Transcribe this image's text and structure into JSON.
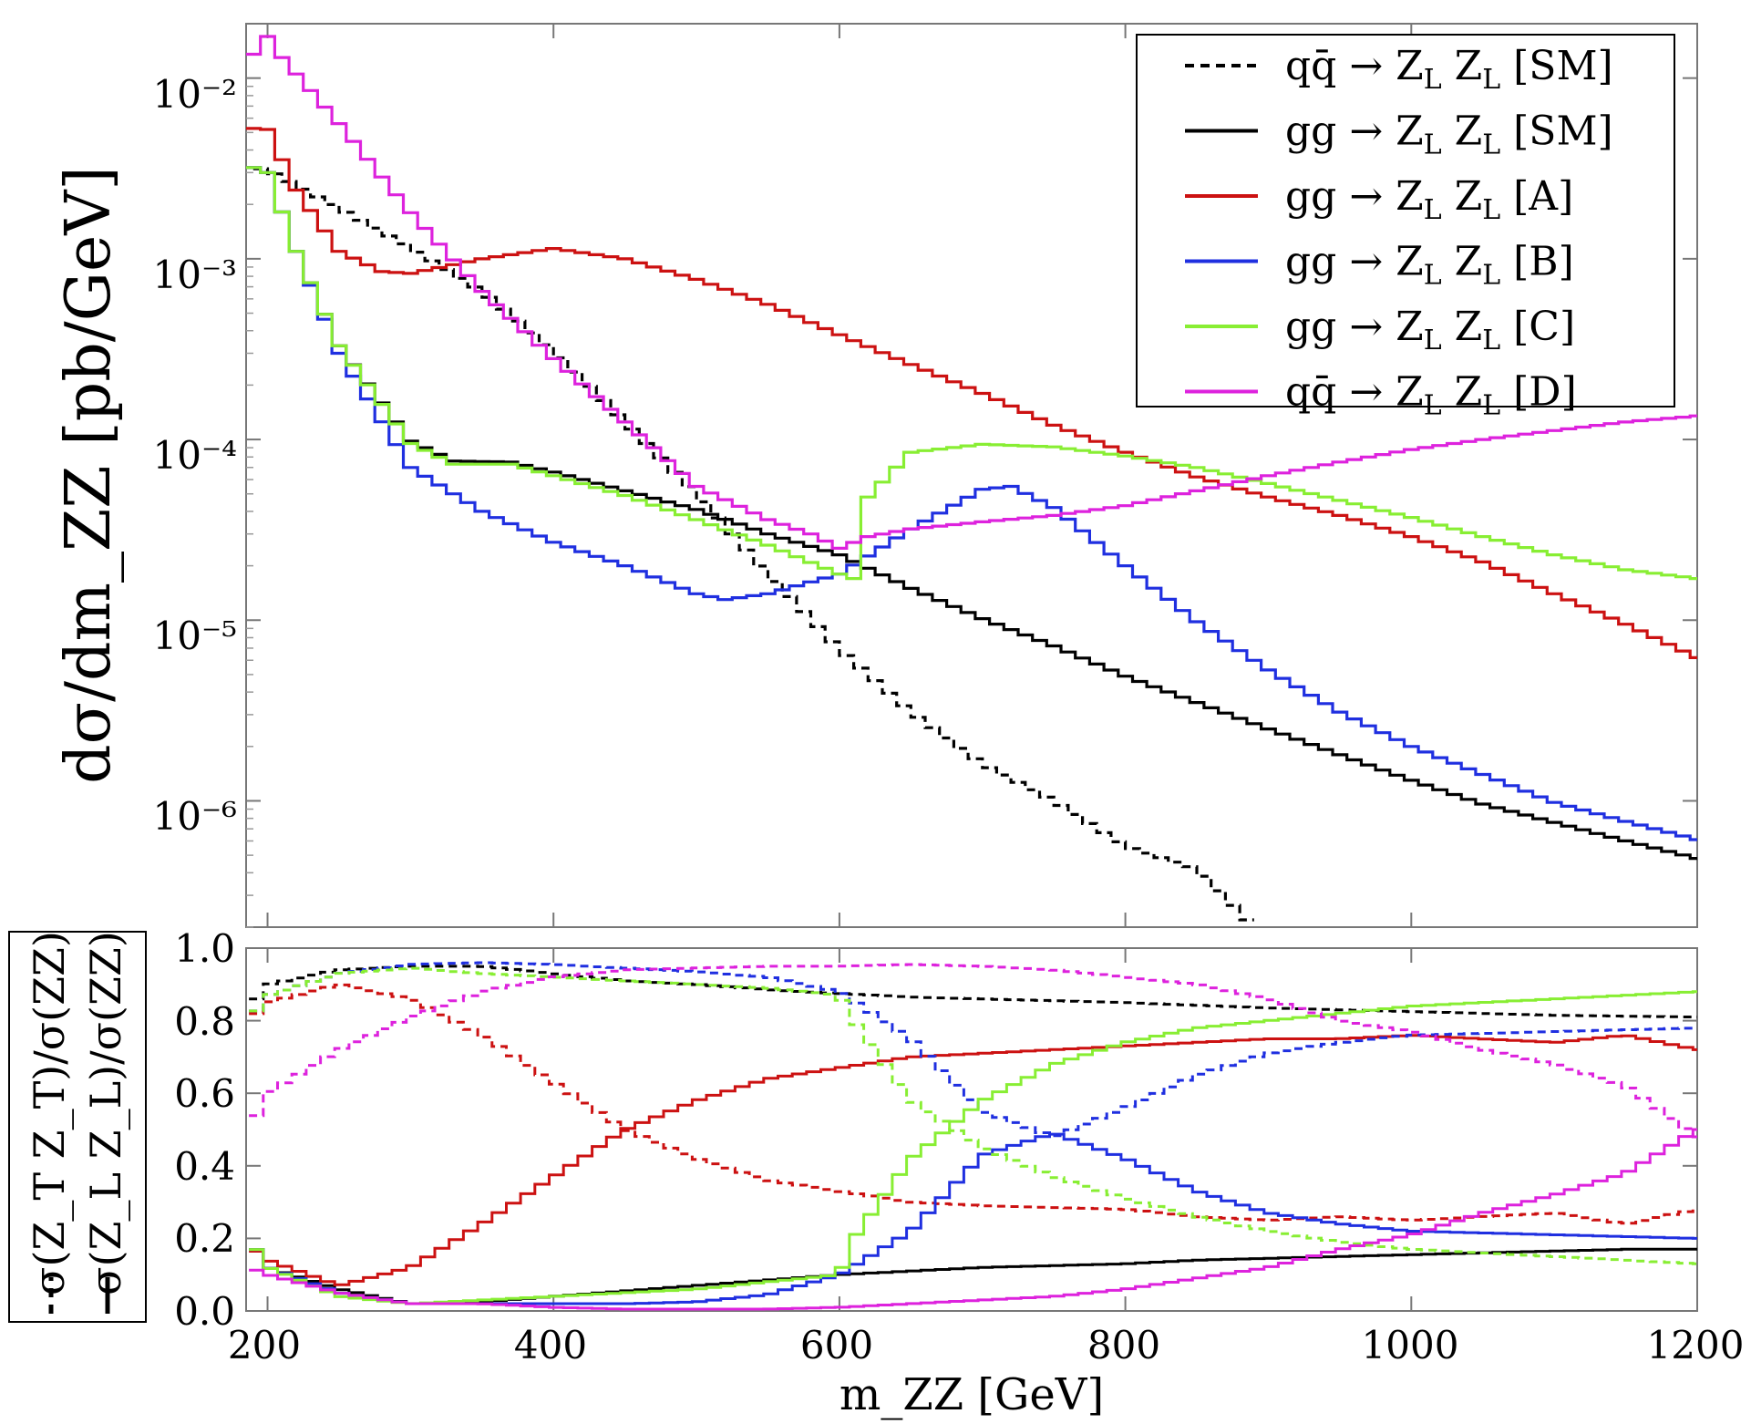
{
  "colors": {
    "qqSM": "#000000",
    "ggSM": "#000000",
    "A": "#cc1111",
    "B": "#1f2fe0",
    "C": "#88ee33",
    "D": "#dd22dd"
  },
  "chart_data": [
    {
      "type": "line",
      "step": true,
      "yscale": "log",
      "ylabel": "dσ/dm_ZZ [pb/GeV]",
      "xlim": [
        185,
        1200
      ],
      "ylim": [
        2e-07,
        0.02
      ],
      "ytick_labels": [
        "10⁻²",
        "10⁻³",
        "10⁻⁴",
        "10⁻⁵",
        "10⁻⁶"
      ],
      "ytick_values": [
        0.01,
        0.001,
        0.0001,
        1e-05,
        1e-06
      ],
      "legend": [
        {
          "label": "qq̄ → Z_L Z_L [SM]",
          "main": "qq̄ → Z",
          "sub1": "L",
          "mid": "Z",
          "sub2": "L",
          "tag": "[SM]",
          "style": "dashed",
          "key": "qqSM"
        },
        {
          "label": "gg → Z_L Z_L [SM]",
          "main": "gg → Z",
          "sub1": "L",
          "mid": "Z",
          "sub2": "L",
          "tag": "[SM]",
          "style": "solid",
          "key": "ggSM"
        },
        {
          "label": "gg → Z_L Z_L [A]",
          "main": "gg → Z",
          "sub1": "L",
          "mid": "Z",
          "sub2": "L",
          "tag": "[A]",
          "style": "solid",
          "key": "A"
        },
        {
          "label": "gg → Z_L Z_L [B]",
          "main": "gg → Z",
          "sub1": "L",
          "mid": "Z",
          "sub2": "L",
          "tag": "[B]",
          "style": "solid",
          "key": "B"
        },
        {
          "label": "gg → Z_L Z_L [C]",
          "main": "gg → Z",
          "sub1": "L",
          "mid": "Z",
          "sub2": "L",
          "tag": "[C]",
          "style": "solid",
          "key": "C"
        },
        {
          "label": "qq̄ → Z_L Z_L [D]",
          "main": "qq̄ → Z",
          "sub1": "L",
          "mid": "Z",
          "sub2": "L",
          "tag": "[D]",
          "style": "solid",
          "key": "D"
        }
      ],
      "series": [
        {
          "name": "qq̄ → Z_L Z_L [SM]",
          "key": "qqSM",
          "style": "dashed",
          "x": [
            190,
            200,
            250,
            300,
            350,
            400,
            450,
            500,
            550,
            600,
            650,
            700,
            750,
            800,
            850,
            890
          ],
          "y": [
            0.0032,
            0.0031,
            0.0019,
            0.00115,
            0.00066,
            0.00031,
            0.000125,
            5e-05,
            1.8e-05,
            6.9e-06,
            3.1e-06,
            1.6e-06,
            1e-06,
            5.6e-07,
            4.2e-07,
            2e-07
          ]
        },
        {
          "name": "gg → Z_L Z_L [SM]",
          "key": "ggSM",
          "style": "solid",
          "x": [
            185,
            200,
            220,
            250,
            300,
            330,
            370,
            400,
            450,
            500,
            550,
            600,
            650,
            700,
            750,
            800,
            850,
            900,
            950,
            1000,
            1050,
            1100,
            1150,
            1200
          ],
          "y": [
            0.0033,
            0.003,
            0.0011,
            0.00033,
            9.8e-05,
            7.6e-05,
            7.5e-05,
            6.6e-05,
            5.2e-05,
            4.1e-05,
            3e-05,
            2.3e-05,
            1.5e-05,
            1.02e-05,
            7.2e-06,
            4.9e-06,
            3.5e-06,
            2.5e-06,
            1.8e-06,
            1.3e-06,
            9.6e-07,
            7.6e-07,
            6e-07,
            4.8e-07
          ]
        },
        {
          "name": "gg → Z_L Z_L [A]",
          "key": "A",
          "style": "solid",
          "x": [
            185,
            200,
            220,
            250,
            280,
            300,
            350,
            400,
            450,
            500,
            550,
            600,
            650,
            700,
            750,
            800,
            850,
            900,
            950,
            1000,
            1050,
            1100,
            1150,
            1200
          ],
          "y": [
            0.0053,
            0.0052,
            0.0024,
            0.0011,
            0.00085,
            0.00083,
            0.001,
            0.00114,
            0.001,
            0.00077,
            0.00056,
            0.00038,
            0.00026,
            0.00018,
            0.00012,
            8.5e-05,
            6.2e-05,
            4.8e-05,
            3.8e-05,
            2.9e-05,
            2.1e-05,
            1.4e-05,
            9.5e-06,
            6.2e-06
          ]
        },
        {
          "name": "gg → Z_L Z_L [B]",
          "key": "B",
          "style": "solid",
          "x": [
            185,
            200,
            220,
            250,
            300,
            350,
            400,
            450,
            500,
            520,
            550,
            600,
            650,
            700,
            720,
            750,
            800,
            850,
            900,
            950,
            1000,
            1050,
            1100,
            1150,
            1200
          ],
          "y": [
            0.0033,
            0.003,
            0.0011,
            0.0003,
            7e-05,
            4e-05,
            2.7e-05,
            2e-05,
            1.4e-05,
            1.3e-05,
            1.4e-05,
            1.8e-05,
            3.2e-05,
            5.3e-05,
            5.5e-05,
            4.2e-05,
            2e-05,
            9.8e-06,
            5.3e-06,
            3.1e-06,
            2e-06,
            1.4e-06,
            9.8e-07,
            7.7e-07,
            6.1e-07
          ]
        },
        {
          "name": "gg → Z_L Z_L [C]",
          "key": "C",
          "style": "solid",
          "x": [
            185,
            200,
            220,
            250,
            300,
            330,
            370,
            400,
            450,
            500,
            550,
            600,
            610,
            620,
            650,
            700,
            750,
            800,
            850,
            900,
            950,
            1000,
            1050,
            1100,
            1150,
            1200
          ],
          "y": [
            0.0033,
            0.003,
            0.0011,
            0.00033,
            9.5e-05,
            7.3e-05,
            7.3e-05,
            6.3e-05,
            4.9e-05,
            3.6e-05,
            2.6e-05,
            1.8e-05,
            1.7e-05,
            4.8e-05,
            8.5e-05,
            9.4e-05,
            9.1e-05,
            8.1e-05,
            7e-05,
            5.7e-05,
            4.6e-05,
            3.7e-05,
            2.9e-05,
            2.3e-05,
            1.9e-05,
            1.7e-05
          ]
        },
        {
          "name": "qq̄ → Z_L Z_L [D]",
          "key": "D",
          "style": "solid",
          "x": [
            185,
            195,
            200,
            210,
            250,
            300,
            350,
            400,
            450,
            500,
            550,
            580,
            600,
            620,
            650,
            700,
            750,
            800,
            850,
            900,
            950,
            1000,
            1050,
            1100,
            1150,
            1200
          ],
          "y": [
            0.0105,
            0.0175,
            0.017,
            0.013,
            0.0056,
            0.0018,
            0.00066,
            0.00028,
            0.000125,
            5.5e-05,
            3.6e-05,
            3e-05,
            2.5e-05,
            2.9e-05,
            3.2e-05,
            3.5e-05,
            3.8e-05,
            4.3e-05,
            5.2e-05,
            6.3e-05,
            7.5e-05,
            8.8e-05,
            0.0001,
            0.000112,
            0.000125,
            0.000135
          ]
        }
      ]
    },
    {
      "type": "line",
      "step": true,
      "ylabel_dashed": "σ(Z_T Z_T)/σ(ZZ)",
      "ylabel_solid": "σ(Z_L Z_L)/σ(ZZ)",
      "xlabel": "m_ZZ [GeV]",
      "xlim": [
        185,
        1200
      ],
      "ylim": [
        0,
        1
      ],
      "xtick_labels": [
        "200",
        "400",
        "600",
        "800",
        "1000",
        "1200"
      ],
      "xtick_values": [
        200,
        400,
        600,
        800,
        1000,
        1200
      ],
      "ytick_labels": [
        "0.0",
        "0.2",
        "0.4",
        "0.6",
        "0.8",
        "1.0"
      ],
      "ytick_values": [
        0,
        0.2,
        0.4,
        0.6,
        0.8,
        1.0
      ],
      "series": [
        {
          "name": "SM σ(Z_T Z_T)/σ(ZZ)",
          "key": "qqSM",
          "style": "dashed",
          "x": [
            187,
            190,
            200,
            250,
            300,
            350,
            400,
            450,
            500,
            550,
            600,
            650,
            700,
            800,
            900,
            1000,
            1100,
            1200
          ],
          "y": [
            0.75,
            0.85,
            0.9,
            0.94,
            0.95,
            0.95,
            0.93,
            0.91,
            0.9,
            0.885,
            0.875,
            0.865,
            0.86,
            0.85,
            0.835,
            0.825,
            0.815,
            0.81
          ]
        },
        {
          "name": "SM σ(Z_L Z_L)/σ(ZZ)",
          "key": "ggSM",
          "style": "solid",
          "x": [
            187,
            200,
            250,
            300,
            350,
            400,
            450,
            500,
            550,
            600,
            650,
            700,
            750,
            800,
            850,
            900,
            950,
            1000,
            1050,
            1100,
            1150,
            1200
          ],
          "y": [
            0.2,
            0.12,
            0.06,
            0.02,
            0.025,
            0.04,
            0.055,
            0.07,
            0.085,
            0.1,
            0.11,
            0.12,
            0.125,
            0.13,
            0.14,
            0.145,
            0.15,
            0.155,
            0.16,
            0.165,
            0.17,
            0.17
          ]
        },
        {
          "name": "A σ(Z_T Z_T)/σ(ZZ)",
          "key": "A",
          "style": "dashed",
          "x": [
            187,
            200,
            250,
            300,
            350,
            400,
            450,
            500,
            550,
            600,
            650,
            700,
            750,
            800,
            850,
            900,
            950,
            1000,
            1050,
            1100,
            1150,
            1200
          ],
          "y": [
            0.8,
            0.85,
            0.9,
            0.86,
            0.76,
            0.63,
            0.5,
            0.42,
            0.36,
            0.33,
            0.3,
            0.29,
            0.285,
            0.28,
            0.26,
            0.25,
            0.26,
            0.25,
            0.26,
            0.27,
            0.24,
            0.28
          ]
        },
        {
          "name": "A σ(Z_L Z_L)/σ(ZZ)",
          "key": "A",
          "style": "solid",
          "x": [
            187,
            200,
            250,
            300,
            350,
            400,
            450,
            500,
            550,
            600,
            650,
            700,
            750,
            800,
            850,
            900,
            950,
            1000,
            1050,
            1100,
            1150,
            1200
          ],
          "y": [
            0.18,
            0.14,
            0.07,
            0.12,
            0.24,
            0.37,
            0.5,
            0.58,
            0.64,
            0.67,
            0.7,
            0.71,
            0.72,
            0.73,
            0.74,
            0.75,
            0.75,
            0.76,
            0.75,
            0.74,
            0.76,
            0.72
          ]
        },
        {
          "name": "B σ(Z_T Z_T)/σ(ZZ)",
          "key": "B",
          "style": "dashed",
          "x": [
            187,
            200,
            250,
            300,
            350,
            400,
            450,
            500,
            550,
            600,
            650,
            700,
            750,
            800,
            850,
            900,
            950,
            1000,
            1100,
            1200
          ],
          "y": [
            0.8,
            0.87,
            0.93,
            0.955,
            0.96,
            0.955,
            0.945,
            0.935,
            0.92,
            0.88,
            0.75,
            0.55,
            0.48,
            0.56,
            0.65,
            0.71,
            0.74,
            0.76,
            0.77,
            0.78
          ]
        },
        {
          "name": "B σ(Z_L Z_L)/σ(ZZ)",
          "key": "B",
          "style": "solid",
          "x": [
            187,
            200,
            250,
            300,
            350,
            400,
            450,
            500,
            550,
            600,
            650,
            700,
            750,
            800,
            850,
            900,
            950,
            1000,
            1100,
            1200
          ],
          "y": [
            0.2,
            0.12,
            0.05,
            0.02,
            0.02,
            0.02,
            0.02,
            0.025,
            0.045,
            0.1,
            0.22,
            0.43,
            0.49,
            0.42,
            0.33,
            0.27,
            0.24,
            0.22,
            0.21,
            0.2
          ]
        },
        {
          "name": "C σ(Z_T Z_T)/σ(ZZ)",
          "key": "C",
          "style": "dashed",
          "x": [
            187,
            200,
            250,
            300,
            350,
            400,
            450,
            500,
            550,
            600,
            610,
            650,
            700,
            750,
            800,
            850,
            900,
            950,
            1000,
            1100,
            1200
          ],
          "y": [
            0.8,
            0.87,
            0.93,
            0.945,
            0.93,
            0.92,
            0.91,
            0.9,
            0.89,
            0.87,
            0.8,
            0.58,
            0.45,
            0.37,
            0.31,
            0.26,
            0.22,
            0.19,
            0.17,
            0.15,
            0.13
          ]
        },
        {
          "name": "C σ(Z_L Z_L)/σ(ZZ)",
          "key": "C",
          "style": "solid",
          "x": [
            187,
            200,
            250,
            300,
            350,
            400,
            450,
            500,
            550,
            600,
            610,
            650,
            700,
            750,
            800,
            850,
            900,
            950,
            1000,
            1100,
            1200
          ],
          "y": [
            0.2,
            0.12,
            0.04,
            0.02,
            0.03,
            0.04,
            0.05,
            0.06,
            0.08,
            0.1,
            0.2,
            0.42,
            0.58,
            0.68,
            0.74,
            0.78,
            0.8,
            0.82,
            0.84,
            0.86,
            0.88
          ]
        },
        {
          "name": "D σ(Z_T Z_T)/σ(ZZ)",
          "key": "D",
          "style": "dashed",
          "x": [
            187,
            200,
            250,
            300,
            350,
            400,
            450,
            500,
            550,
            600,
            650,
            700,
            750,
            800,
            850,
            900,
            950,
            1000,
            1050,
            1100,
            1150,
            1200
          ],
          "y": [
            0.5,
            0.6,
            0.72,
            0.81,
            0.88,
            0.92,
            0.94,
            0.945,
            0.95,
            0.95,
            0.955,
            0.95,
            0.94,
            0.92,
            0.9,
            0.86,
            0.8,
            0.77,
            0.72,
            0.68,
            0.62,
            0.48
          ]
        },
        {
          "name": "D σ(Z_L Z_L)/σ(ZZ)",
          "key": "D",
          "style": "solid",
          "x": [
            187,
            200,
            250,
            300,
            350,
            400,
            450,
            500,
            550,
            600,
            650,
            700,
            750,
            800,
            850,
            900,
            950,
            1000,
            1050,
            1100,
            1150,
            1200
          ],
          "y": [
            0.12,
            0.1,
            0.05,
            0.02,
            0.02,
            0.01,
            0.005,
            0.005,
            0.005,
            0.01,
            0.02,
            0.03,
            0.04,
            0.06,
            0.09,
            0.12,
            0.17,
            0.21,
            0.27,
            0.32,
            0.38,
            0.5
          ]
        }
      ]
    }
  ]
}
